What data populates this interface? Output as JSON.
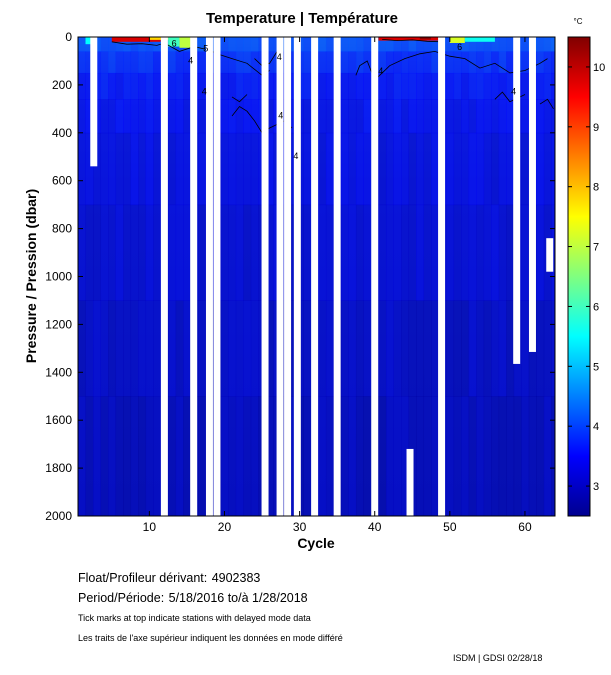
{
  "chart_data": {
    "type": "heatmap",
    "title": "Temperature | Température",
    "xlabel": "Cycle",
    "ylabel": "Pressure / Pression (dbar)",
    "xlim": [
      0.5,
      64
    ],
    "ylim": [
      0,
      2000
    ],
    "y_reversed": true,
    "x_ticks": [
      10,
      20,
      30,
      40,
      50,
      60
    ],
    "y_ticks": [
      0,
      200,
      400,
      600,
      800,
      1000,
      1200,
      1400,
      1600,
      1800,
      2000
    ],
    "colorbar": {
      "unit": "°C",
      "range": [
        2.5,
        10.5
      ],
      "ticks": [
        3,
        4,
        5,
        6,
        7,
        8,
        9,
        10
      ]
    },
    "contour_labels": [
      {
        "cycle": 13.3,
        "pressure": 40,
        "value": "6"
      },
      {
        "cycle": 15.5,
        "pressure": 110,
        "value": "4"
      },
      {
        "cycle": 17.5,
        "pressure": 60,
        "value": "5"
      },
      {
        "cycle": 17.3,
        "pressure": 240,
        "value": "4"
      },
      {
        "cycle": 27.3,
        "pressure": 95,
        "value": "4"
      },
      {
        "cycle": 27.5,
        "pressure": 340,
        "value": "4"
      },
      {
        "cycle": 29.5,
        "pressure": 510,
        "value": "4"
      },
      {
        "cycle": 40.8,
        "pressure": 155,
        "value": "4"
      },
      {
        "cycle": 51.3,
        "pressure": 55,
        "value": "6"
      },
      {
        "cycle": 58.5,
        "pressure": 240,
        "value": "4"
      }
    ],
    "missing_profiles": [
      {
        "cycle": 2.6,
        "pressure_from": 0,
        "pressure_to": 540
      },
      {
        "cycle": 12.0,
        "pressure_from": 0,
        "pressure_to": 2000
      },
      {
        "cycle": 15.9,
        "pressure_from": 0,
        "pressure_to": 2000
      },
      {
        "cycle": 18.0,
        "pressure_from": 0,
        "pressure_to": 2000
      },
      {
        "cycle": 19.0,
        "pressure_from": 0,
        "pressure_to": 2000
      },
      {
        "cycle": 25.4,
        "pressure_from": 0,
        "pressure_to": 2000
      },
      {
        "cycle": 27.4,
        "pressure_from": 0,
        "pressure_to": 2000
      },
      {
        "cycle": 28.4,
        "pressure_from": 0,
        "pressure_to": 2000
      },
      {
        "cycle": 29.7,
        "pressure_from": 0,
        "pressure_to": 2000
      },
      {
        "cycle": 32.0,
        "pressure_from": 0,
        "pressure_to": 2000
      },
      {
        "cycle": 35.0,
        "pressure_from": 0,
        "pressure_to": 2000
      },
      {
        "cycle": 40.0,
        "pressure_from": 0,
        "pressure_to": 2000
      },
      {
        "cycle": 44.7,
        "pressure_from": 1720,
        "pressure_to": 2000
      },
      {
        "cycle": 48.9,
        "pressure_from": 0,
        "pressure_to": 2000
      },
      {
        "cycle": 58.9,
        "pressure_from": 0,
        "pressure_to": 1365
      },
      {
        "cycle": 61.0,
        "pressure_from": 0,
        "pressure_to": 1315
      },
      {
        "cycle": 63.3,
        "pressure_from": 840,
        "pressure_to": 980
      }
    ],
    "warm_surface_layers": [
      {
        "cycle_from": 1.5,
        "cycle_to": 2.4,
        "pressure_to": 30,
        "temp": 5.5
      },
      {
        "cycle_from": 5,
        "cycle_to": 11.5,
        "pressure_to": 20,
        "temp": 9.8
      },
      {
        "cycle_from": 10,
        "cycle_to": 15,
        "pressure_to": 12,
        "temp": 7.8
      },
      {
        "cycle_from": 14,
        "cycle_to": 15.8,
        "pressure_to": 45,
        "temp": 7.0
      },
      {
        "cycle_from": 12.5,
        "cycle_to": 14,
        "pressure_to": 40,
        "temp": 6.0
      },
      {
        "cycle_from": 40.5,
        "cycle_to": 48.5,
        "pressure_to": 15,
        "temp": 9.8
      },
      {
        "cycle_from": 46,
        "cycle_to": 47.5,
        "pressure_to": 10,
        "temp": 10.4
      },
      {
        "cycle_from": 50,
        "cycle_to": 52,
        "pressure_to": 25,
        "temp": 7.2
      },
      {
        "cycle_from": 52,
        "cycle_to": 56,
        "pressure_to": 20,
        "temp": 5.6
      }
    ]
  },
  "info": {
    "float_label": "Float/Profileur dérivant:",
    "float_value": "4902383",
    "period_label": "Period/Période:",
    "period_value": "5/18/2016  to/à  1/28/2018",
    "note_en": "Tick marks at top indicate stations with delayed mode data",
    "note_fr": "Les traits de l'axe supérieur indiquent les données en mode différé",
    "footer": "ISDM | GDSI  02/28/18"
  }
}
